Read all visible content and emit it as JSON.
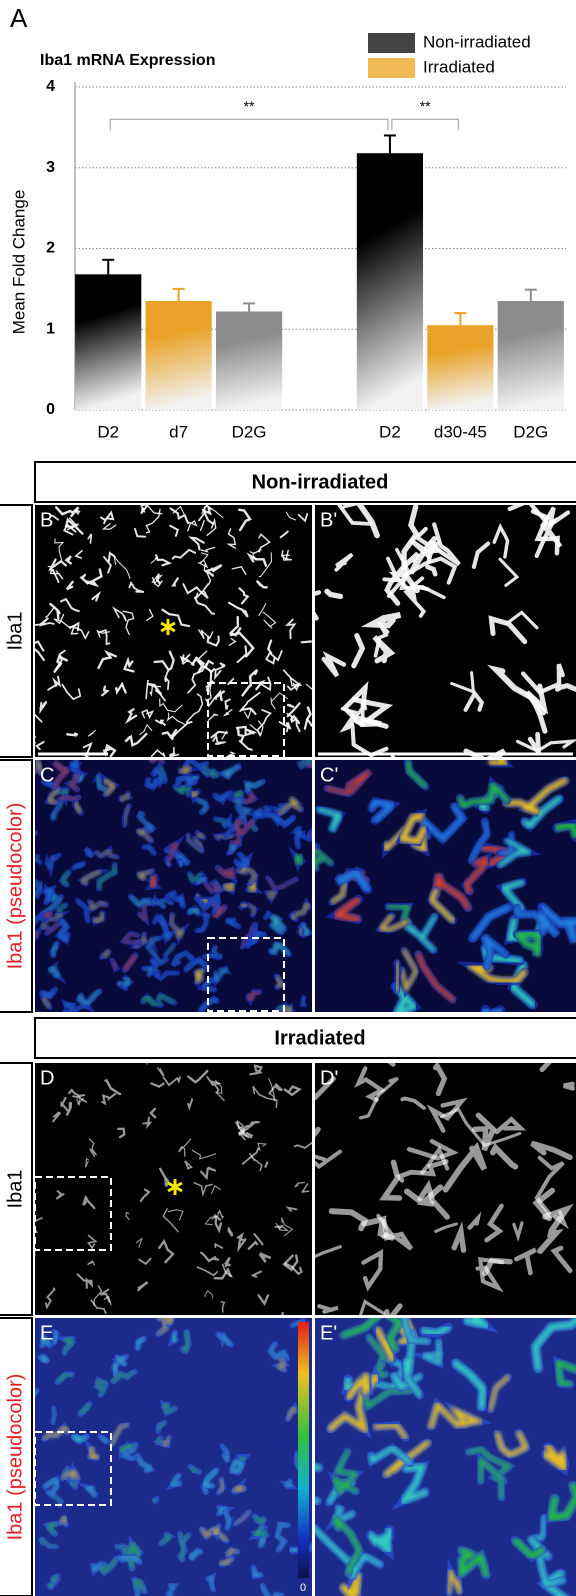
{
  "chart_data": {
    "type": "bar",
    "panel_label": "A",
    "title": "Iba1 mRNA Expression",
    "y_label": "Mean Fold Change",
    "categories": [
      "D2",
      "d7",
      "D2G",
      null,
      "D2",
      "d30-45",
      "D2G"
    ],
    "values": [
      1.68,
      1.35,
      1.22,
      null,
      3.18,
      1.05,
      1.35
    ],
    "errors": [
      0.18,
      0.15,
      0.1,
      null,
      0.22,
      0.15,
      0.14
    ],
    "bar_colors": [
      "#000000",
      "#e9a227",
      "#8c8c8c",
      null,
      "#000000",
      "#e9a227",
      "#8c8c8c"
    ],
    "legend": [
      {
        "name": "Non-irradiated",
        "color": "#444444"
      },
      {
        "name": "Irradiated",
        "color": "#f2b854"
      }
    ],
    "ylim": [
      0,
      4
    ],
    "yticks": [
      0,
      1,
      2,
      3,
      4
    ],
    "grid": true,
    "annotations": [
      {
        "text": "**",
        "from": 0,
        "to": 4,
        "y": 3.6
      },
      {
        "text": "**",
        "from": 4,
        "to": 5,
        "y": 3.6
      }
    ]
  },
  "figure": {
    "sections": [
      {
        "header": "Non-irradiated",
        "rows": [
          {
            "label": "Iba1",
            "color": "#000000",
            "panels": [
              "B",
              "B'"
            ]
          },
          {
            "label": "Iba1 (pseudocolor)",
            "color": "#e31e24",
            "panels": [
              "C",
              "C'"
            ]
          }
        ]
      },
      {
        "header": "Irradiated",
        "rows": [
          {
            "label": "Iba1",
            "color": "#000000",
            "panels": [
              "D",
              "D'"
            ]
          },
          {
            "label": "Iba1 (pseudocolor)",
            "color": "#e31e24",
            "panels": [
              "E",
              "E'"
            ]
          }
        ]
      }
    ],
    "colorbar_label": 0
  }
}
